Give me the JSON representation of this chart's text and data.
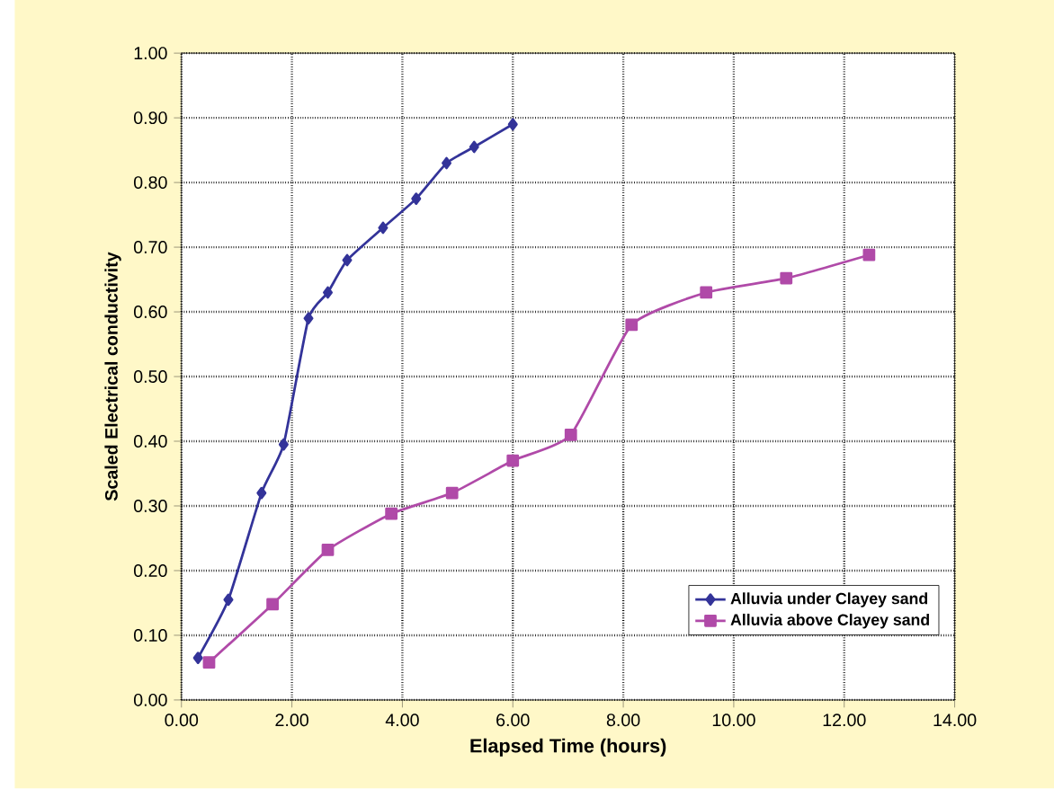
{
  "chart_data": {
    "type": "line",
    "xlabel": "Elapsed Time (hours)",
    "ylabel": "Scaled Electrical conductivity",
    "xlim": [
      0,
      14
    ],
    "xticks": [
      {
        "value": 0,
        "label": "0.00"
      },
      {
        "value": 2,
        "label": "2.00"
      },
      {
        "value": 4,
        "label": "4.00"
      },
      {
        "value": 6,
        "label": "6.00"
      },
      {
        "value": 8,
        "label": "8.00"
      },
      {
        "value": 10,
        "label": "10.00"
      },
      {
        "value": 12,
        "label": "12.00"
      },
      {
        "value": 14,
        "label": "14.00"
      }
    ],
    "ylim": [
      0,
      1
    ],
    "yticks": [
      {
        "value": 0,
        "label": "0.00"
      },
      {
        "value": 0.1,
        "label": "0.10"
      },
      {
        "value": 0.2,
        "label": "0.20"
      },
      {
        "value": 0.3,
        "label": "0.30"
      },
      {
        "value": 0.4,
        "label": "0.40"
      },
      {
        "value": 0.5,
        "label": "0.50"
      },
      {
        "value": 0.6,
        "label": "0.60"
      },
      {
        "value": 0.7,
        "label": "0.70"
      },
      {
        "value": 0.8,
        "label": "0.80"
      },
      {
        "value": 0.9,
        "label": "0.90"
      },
      {
        "value": 1,
        "label": "1.00"
      }
    ],
    "grid": true,
    "legend": "bottom right",
    "series": [
      {
        "name": "Alluvia under Clayey sand",
        "color": "#333399",
        "marker": "diamond",
        "x": [
          0.3,
          0.85,
          1.45,
          1.85,
          2.3,
          2.65,
          3.0,
          3.65,
          4.25,
          4.8,
          5.3,
          6.0
        ],
        "values": [
          0.065,
          0.155,
          0.32,
          0.395,
          0.59,
          0.63,
          0.68,
          0.73,
          0.775,
          0.83,
          0.855,
          0.89
        ]
      },
      {
        "name": "Alluvia above Clayey sand",
        "color": "#b04aa8",
        "marker": "square",
        "x": [
          0.5,
          1.65,
          2.65,
          3.8,
          4.9,
          6.0,
          7.05,
          8.15,
          9.5,
          10.95,
          12.45
        ],
        "values": [
          0.058,
          0.148,
          0.232,
          0.288,
          0.32,
          0.37,
          0.41,
          0.58,
          0.63,
          0.652,
          0.688
        ]
      }
    ]
  }
}
